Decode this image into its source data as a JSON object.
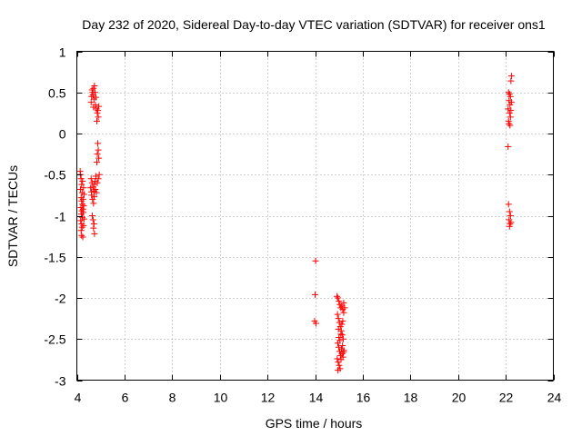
{
  "chart_data": {
    "type": "scatter",
    "title": "Day 232 of 2020, Sidereal Day-to-day VTEC variation (SDTVAR) for receiver ons1",
    "xlabel": "GPS time / hours",
    "ylabel": "SDTVAR / TECUs",
    "xlim": [
      4,
      24
    ],
    "ylim": [
      -3,
      1
    ],
    "xticks": [
      4,
      6,
      8,
      10,
      12,
      14,
      16,
      18,
      20,
      22,
      24
    ],
    "xtick_labels": [
      "4",
      "6",
      "8",
      "10",
      "12",
      "14",
      "16",
      "18",
      "20",
      "22",
      "24"
    ],
    "yticks": [
      1,
      0.5,
      0,
      -0.5,
      -1,
      -1.5,
      -2,
      -2.5,
      -3
    ],
    "ytick_labels": [
      "1",
      "0.5",
      "0",
      "-0.5",
      "-1",
      "-1.5",
      "-2",
      "-2.5",
      "-3"
    ],
    "grid": true,
    "marker": "+",
    "color": "#ff0000",
    "series": [
      {
        "name": "SDTVAR",
        "points": [
          [
            4.15,
            -0.5
          ],
          [
            4.18,
            -0.55
          ],
          [
            4.2,
            -0.62
          ],
          [
            4.15,
            -0.68
          ],
          [
            4.22,
            -0.72
          ],
          [
            4.18,
            -0.78
          ],
          [
            4.2,
            -0.82
          ],
          [
            4.24,
            -0.86
          ],
          [
            4.17,
            -0.9
          ],
          [
            4.21,
            -0.94
          ],
          [
            4.19,
            -0.98
          ],
          [
            4.23,
            -1.02
          ],
          [
            4.16,
            -1.06
          ],
          [
            4.2,
            -1.1
          ],
          [
            4.22,
            -1.14
          ],
          [
            4.18,
            -1.18
          ],
          [
            4.2,
            -1.24
          ],
          [
            4.25,
            -1.26
          ],
          [
            4.28,
            -0.66
          ],
          [
            4.3,
            -0.74
          ],
          [
            4.26,
            -0.8
          ],
          [
            4.29,
            -0.88
          ],
          [
            4.27,
            -0.96
          ],
          [
            4.3,
            -1.04
          ],
          [
            4.28,
            -1.12
          ],
          [
            4.14,
            -0.46
          ],
          [
            4.24,
            -0.58
          ],
          [
            4.26,
            -0.92
          ],
          [
            4.62,
            0.45
          ],
          [
            4.66,
            0.5
          ],
          [
            4.7,
            0.55
          ],
          [
            4.74,
            0.58
          ],
          [
            4.64,
            0.53
          ],
          [
            4.68,
            0.47
          ],
          [
            4.72,
            0.42
          ],
          [
            4.6,
            0.38
          ],
          [
            4.76,
            0.5
          ],
          [
            4.8,
            0.44
          ],
          [
            4.78,
            0.35
          ],
          [
            4.82,
            0.3
          ],
          [
            4.86,
            0.25
          ],
          [
            4.9,
            0.2
          ],
          [
            4.84,
            0.15
          ],
          [
            4.7,
            0.32
          ],
          [
            4.88,
            0.28
          ],
          [
            4.92,
            0.33
          ],
          [
            4.88,
            -0.12
          ],
          [
            4.9,
            -0.2
          ],
          [
            4.86,
            -0.25
          ],
          [
            4.92,
            -0.3
          ],
          [
            4.84,
            -0.35
          ],
          [
            4.6,
            -0.55
          ],
          [
            4.64,
            -0.6
          ],
          [
            4.68,
            -0.65
          ],
          [
            4.72,
            -0.7
          ],
          [
            4.76,
            -0.58
          ],
          [
            4.8,
            -0.52
          ],
          [
            4.62,
            -0.75
          ],
          [
            4.66,
            -0.8
          ],
          [
            4.7,
            -0.85
          ],
          [
            4.74,
            -0.62
          ],
          [
            4.78,
            -0.68
          ],
          [
            4.82,
            -0.72
          ],
          [
            4.86,
            -0.6
          ],
          [
            4.9,
            -0.55
          ],
          [
            4.94,
            -0.5
          ],
          [
            4.58,
            -0.66
          ],
          [
            4.61,
            -0.71
          ],
          [
            4.73,
            -0.77
          ],
          [
            4.65,
            -1.0
          ],
          [
            4.68,
            -1.05
          ],
          [
            4.72,
            -1.1
          ],
          [
            4.7,
            -1.15
          ],
          [
            4.74,
            -1.22
          ],
          [
            14.02,
            -1.55
          ],
          [
            14.0,
            -1.96
          ],
          [
            13.98,
            -2.28
          ],
          [
            14.04,
            -2.31
          ],
          [
            14.92,
            -1.98
          ],
          [
            14.96,
            -2.0
          ],
          [
            15.0,
            -2.04
          ],
          [
            15.04,
            -2.08
          ],
          [
            15.08,
            -2.12
          ],
          [
            15.12,
            -2.1
          ],
          [
            15.16,
            -2.14
          ],
          [
            15.2,
            -2.06
          ],
          [
            14.94,
            -2.2
          ],
          [
            14.98,
            -2.25
          ],
          [
            15.02,
            -2.3
          ],
          [
            15.06,
            -2.35
          ],
          [
            15.1,
            -2.4
          ],
          [
            15.14,
            -2.45
          ],
          [
            15.18,
            -2.5
          ],
          [
            14.95,
            -2.55
          ],
          [
            14.99,
            -2.6
          ],
          [
            15.03,
            -2.65
          ],
          [
            15.07,
            -2.7
          ],
          [
            15.11,
            -2.62
          ],
          [
            15.15,
            -2.58
          ],
          [
            15.19,
            -2.66
          ],
          [
            14.93,
            -2.74
          ],
          [
            14.97,
            -2.78
          ],
          [
            15.01,
            -2.82
          ],
          [
            15.05,
            -2.86
          ],
          [
            14.96,
            -2.88
          ],
          [
            15.09,
            -2.75
          ],
          [
            15.13,
            -2.68
          ],
          [
            15.17,
            -2.72
          ],
          [
            15.21,
            -2.64
          ],
          [
            15.0,
            -2.48
          ],
          [
            15.04,
            -2.52
          ],
          [
            15.08,
            -2.44
          ],
          [
            14.98,
            -2.38
          ],
          [
            15.12,
            -2.32
          ],
          [
            15.16,
            -2.28
          ],
          [
            15.2,
            -2.18
          ],
          [
            15.24,
            -2.12
          ],
          [
            22.12,
            0.5
          ],
          [
            22.16,
            0.48
          ],
          [
            22.2,
            0.45
          ],
          [
            22.22,
            0.64
          ],
          [
            22.24,
            0.7
          ],
          [
            22.14,
            0.4
          ],
          [
            22.18,
            0.35
          ],
          [
            22.1,
            0.3
          ],
          [
            22.16,
            0.25
          ],
          [
            22.2,
            0.2
          ],
          [
            22.12,
            0.15
          ],
          [
            22.18,
            0.1
          ],
          [
            22.22,
            0.28
          ],
          [
            22.24,
            0.38
          ],
          [
            22.14,
            0.12
          ],
          [
            22.1,
            -0.16
          ],
          [
            22.12,
            -0.86
          ],
          [
            22.16,
            -0.95
          ],
          [
            22.2,
            -1.0
          ],
          [
            22.14,
            -1.05
          ],
          [
            22.18,
            -1.1
          ],
          [
            22.22,
            -1.08
          ],
          [
            22.16,
            -1.13
          ]
        ]
      }
    ]
  }
}
